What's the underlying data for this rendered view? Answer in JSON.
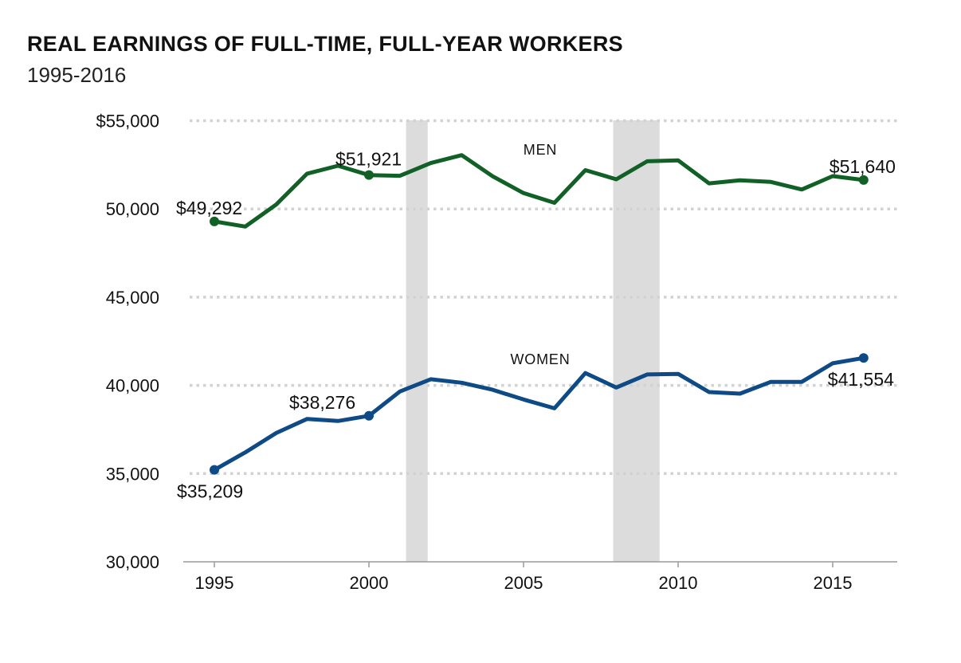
{
  "title": "REAL EARNINGS OF FULL-TIME, FULL-YEAR WORKERS",
  "subtitle": "1995-2016",
  "chart_data": {
    "type": "line",
    "title": "REAL EARNINGS OF FULL-TIME, FULL-YEAR WORKERS",
    "subtitle": "1995-2016",
    "xlabel": "",
    "ylabel": "",
    "xlim": [
      1994,
      2017
    ],
    "ylim": [
      30000,
      55000
    ],
    "x_ticks": [
      1995,
      2000,
      2005,
      2010,
      2015
    ],
    "y_ticks": [
      30000,
      35000,
      40000,
      45000,
      50000,
      55000
    ],
    "y_tick_labels": [
      "30,000",
      "35,000",
      "40,000",
      "45,000",
      "50,000",
      "$55,000"
    ],
    "grid": "horizontal dotted",
    "recession_shading": [
      [
        2001.2,
        2001.9
      ],
      [
        2007.9,
        2009.4
      ]
    ],
    "x": [
      1995,
      1996,
      1997,
      1998,
      1999,
      2000,
      2001,
      2002,
      2003,
      2004,
      2005,
      2006,
      2007,
      2008,
      2009,
      2010,
      2011,
      2012,
      2013,
      2014,
      2015,
      2016
    ],
    "series": [
      {
        "name": "MEN",
        "color": "#116127",
        "values": [
          49292,
          49000,
          50250,
          52000,
          52450,
          51921,
          51880,
          52600,
          53050,
          51850,
          50900,
          50350,
          52200,
          51680,
          52700,
          52750,
          51450,
          51620,
          51530,
          51100,
          51860,
          51640
        ],
        "marked_points": [
          {
            "x": 1995,
            "label": "$49,292"
          },
          {
            "x": 2000,
            "label": "$51,921"
          },
          {
            "x": 2016,
            "label": "$51,640"
          }
        ]
      },
      {
        "name": "WOMEN",
        "color": "#0d4a86",
        "values": [
          35209,
          36200,
          37300,
          38100,
          37980,
          38276,
          39650,
          40350,
          40150,
          39750,
          39200,
          38700,
          40700,
          39880,
          40620,
          40650,
          39620,
          39530,
          40200,
          40200,
          41250,
          41554
        ],
        "marked_points": [
          {
            "x": 1995,
            "label": "$35,209"
          },
          {
            "x": 2000,
            "label": "$38,276"
          },
          {
            "x": 2016,
            "label": "$41,554"
          }
        ]
      }
    ]
  }
}
